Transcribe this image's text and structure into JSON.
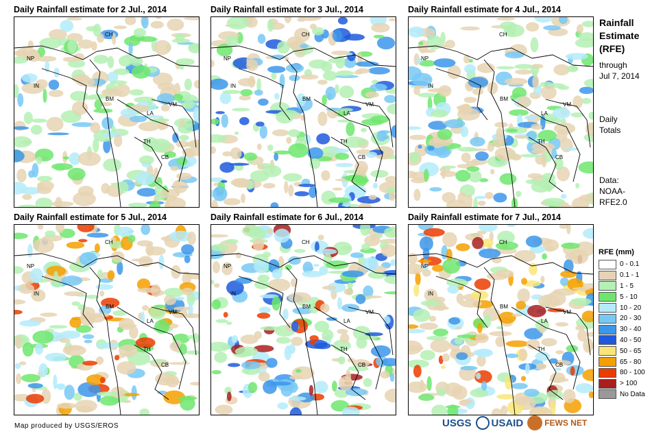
{
  "panels": [
    {
      "title": "Daily Rainfall estimate for 2 Jul., 2014"
    },
    {
      "title": "Daily Rainfall estimate for 3 Jul., 2014"
    },
    {
      "title": "Daily Rainfall estimate for 4 Jul., 2014"
    },
    {
      "title": "Daily Rainfall estimate for 5 Jul., 2014"
    },
    {
      "title": "Daily Rainfall estimate for 6 Jul., 2014"
    },
    {
      "title": "Daily Rainfall estimate for 7 Jul., 2014"
    }
  ],
  "country_labels": [
    "CH",
    "NP",
    "IN",
    "BM",
    "LA",
    "VM",
    "TH",
    "CB"
  ],
  "sidebar": {
    "title_lines": [
      "Rainfall",
      "Estimate",
      "(RFE)"
    ],
    "through": "through",
    "date": "Jul 7, 2014",
    "totals_lines": [
      "Daily",
      "Totals"
    ],
    "data_lines": [
      "Data:",
      "NOAA-",
      "RFE2.0"
    ]
  },
  "legend": {
    "title": "RFE (mm)",
    "items": [
      {
        "label": "0 - 0.1",
        "color": "#ffffff"
      },
      {
        "label": "0.1 - 1",
        "color": "#e6d3b3"
      },
      {
        "label": "1 - 5",
        "color": "#b4f0b4"
      },
      {
        "label": "5 - 10",
        "color": "#6ee66e"
      },
      {
        "label": "10 - 20",
        "color": "#b4ebfa"
      },
      {
        "label": "20 - 30",
        "color": "#78c8f5"
      },
      {
        "label": "30 - 40",
        "color": "#3c96eb"
      },
      {
        "label": "40 - 50",
        "color": "#1e5adc"
      },
      {
        "label": "50 - 65",
        "color": "#fae678"
      },
      {
        "label": "65 - 80",
        "color": "#f5a000"
      },
      {
        "label": "80 - 100",
        "color": "#eb3c00"
      },
      {
        "label": "> 100",
        "color": "#aa1e1e"
      },
      {
        "label": "No Data",
        "color": "#999999"
      }
    ]
  },
  "credit": "Map produced by USGS/EROS",
  "logos": {
    "usgs": "USGS",
    "usaid": "USAID",
    "fews": "FEWS NET"
  }
}
